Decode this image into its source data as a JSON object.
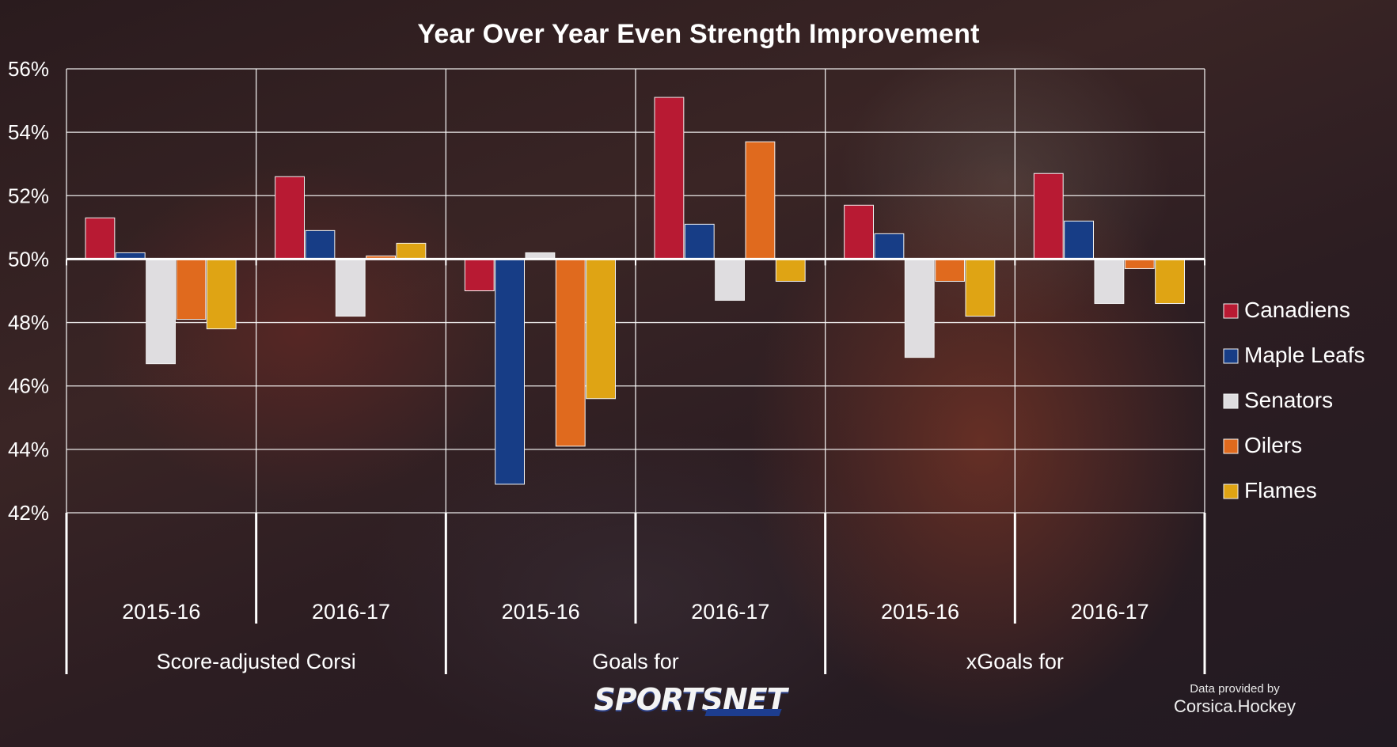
{
  "chart_data": {
    "type": "bar",
    "title": "Year Over Year Even Strength Improvement",
    "baseline": 50,
    "ylim": [
      42,
      56
    ],
    "yticks": [
      42,
      44,
      46,
      48,
      50,
      52,
      54,
      56
    ],
    "ytick_suffix": "%",
    "grid": true,
    "legend_position": "right",
    "groups": [
      {
        "label": "Score-adjusted Corsi",
        "years": [
          "2015-16",
          "2016-17"
        ]
      },
      {
        "label": "Goals for",
        "years": [
          "2015-16",
          "2016-17"
        ]
      },
      {
        "label": "xGoals for",
        "years": [
          "2015-16",
          "2016-17"
        ]
      }
    ],
    "categories": [
      "Score-adjusted Corsi 2015-16",
      "Score-adjusted Corsi 2016-17",
      "Goals for 2015-16",
      "Goals for 2016-17",
      "xGoals for 2015-16",
      "xGoals for 2016-17"
    ],
    "series": [
      {
        "name": "Canadiens",
        "color": "#b81a33",
        "values": [
          51.3,
          52.6,
          49.0,
          55.1,
          51.7,
          52.7
        ]
      },
      {
        "name": "Maple Leafs",
        "color": "#173d86",
        "values": [
          50.2,
          50.9,
          42.9,
          51.1,
          50.8,
          51.2
        ]
      },
      {
        "name": "Senators",
        "color": "#dfdde0",
        "values": [
          46.7,
          48.2,
          50.2,
          48.7,
          46.9,
          48.6
        ]
      },
      {
        "name": "Oilers",
        "color": "#e06a1e",
        "values": [
          48.1,
          50.1,
          44.1,
          53.7,
          49.3,
          49.7
        ]
      },
      {
        "name": "Flames",
        "color": "#dfa414",
        "values": [
          47.8,
          50.5,
          45.6,
          49.3,
          48.2,
          48.6
        ]
      }
    ]
  },
  "branding": {
    "logo": "SPORTSNET",
    "credit_line1": "Data provided by",
    "credit_line2": "Corsica.Hockey"
  }
}
